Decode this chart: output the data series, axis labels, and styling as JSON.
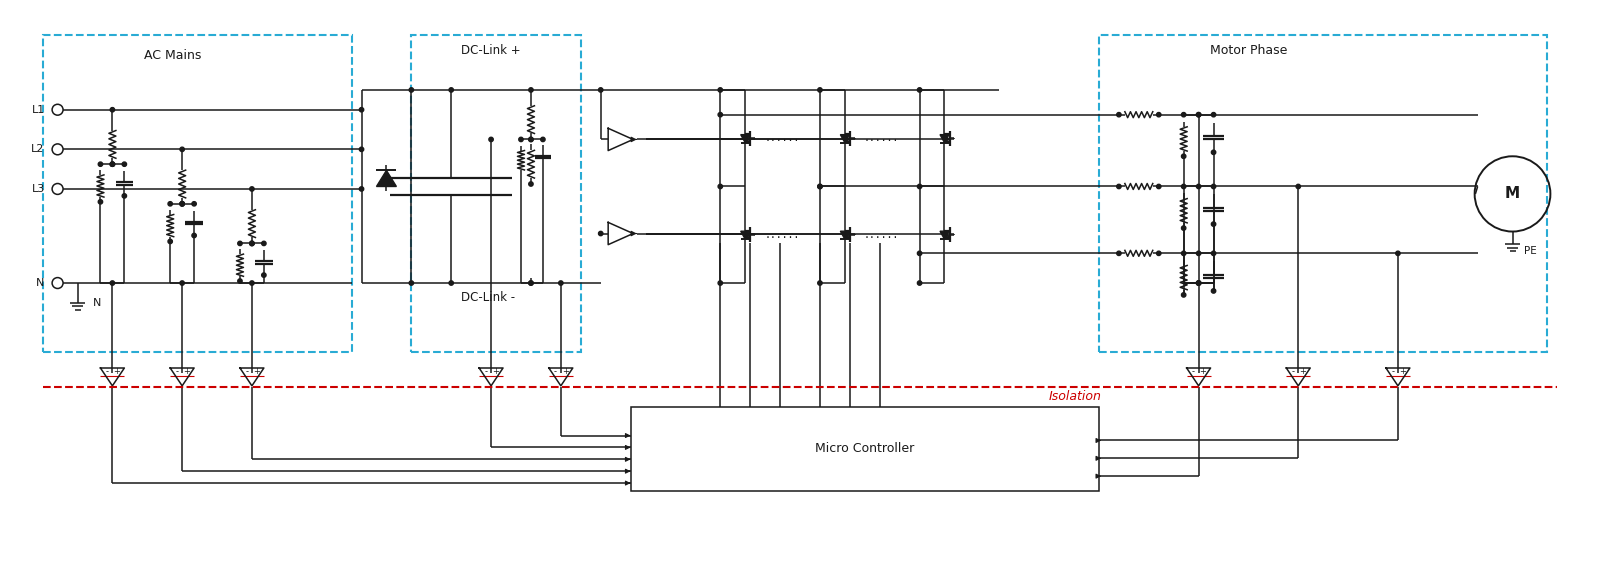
{
  "bg_color": "#ffffff",
  "line_color": "#1a1a1a",
  "dashed_box_color": "#29ABD4",
  "isolation_color": "#cc0000",
  "fig_width": 16.0,
  "fig_height": 5.73,
  "labels": {
    "ac_mains": "AC Mains",
    "dc_link_pos": "DC-Link +",
    "dc_link_neg": "DC-Link -",
    "motor_phase": "Motor Phase",
    "micro_controller": "Micro Controller",
    "isolation": "Isolation",
    "PE": "PE",
    "M": "M",
    "N_gnd": "N"
  }
}
